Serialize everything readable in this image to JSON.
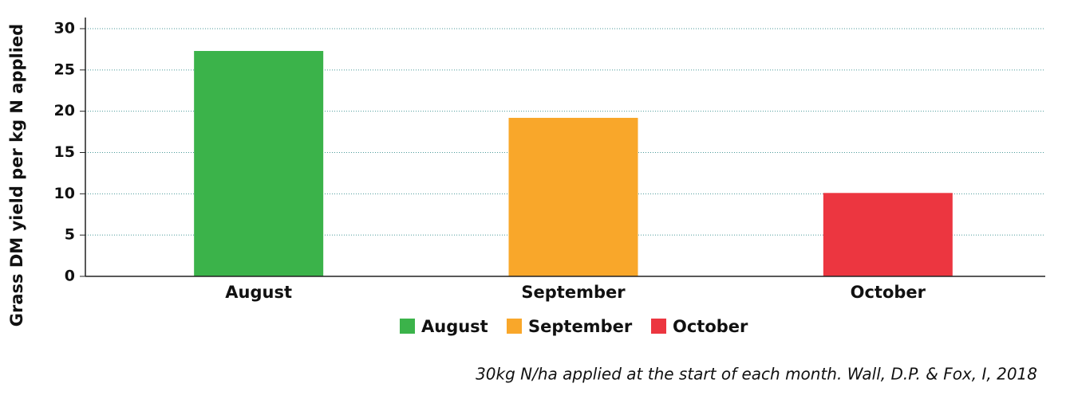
{
  "chart_data": {
    "type": "bar",
    "y_label": "Grass DM yield per kg N applied",
    "categories": [
      "August",
      "September",
      "October"
    ],
    "values": [
      27.3,
      19.2,
      10.1
    ],
    "colors": [
      "#3bb34a",
      "#f9a72a",
      "#ec3640"
    ],
    "ylim": [
      0,
      30
    ],
    "yticks": [
      0,
      5,
      10,
      15,
      20,
      25,
      30
    ],
    "grid": true,
    "caption": "30kg N/ha applied at the start of each month. Wall, D.P. & Fox, I, 2018"
  }
}
